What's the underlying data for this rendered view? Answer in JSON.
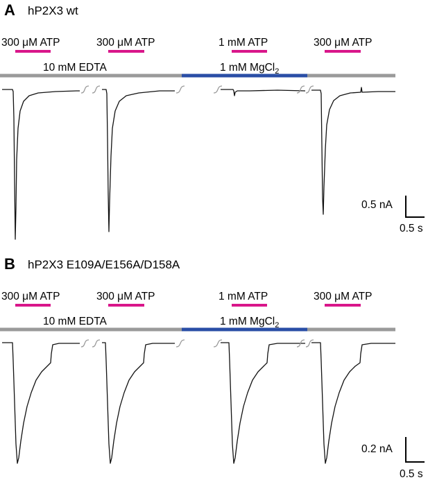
{
  "colors": {
    "atp_bar": "#d9168a",
    "edta_bar": "#9a9a9a",
    "mg_bar": "#2a4ea6",
    "trace": "#111111"
  },
  "panels": [
    {
      "letter": "A",
      "title": "hP2X3 wt",
      "atp_labels": [
        "300 μM ATP",
        "300 μM ATP",
        "1 mM ATP",
        "300 μM ATP"
      ],
      "edta_label": "10 mM EDTA",
      "mg_label_main": "1 mM MgCl",
      "mg_label_sub": "2",
      "scale_y_label": "0.5 nA",
      "scale_x_label": "0.5 s"
    },
    {
      "letter": "B",
      "title": "hP2X3 E109A/E156A/D158A",
      "atp_labels": [
        "300 μM ATP",
        "300 μM ATP",
        "1 mM ATP",
        "300 μM ATP"
      ],
      "edta_label": "10 mM EDTA",
      "mg_label_main": "1 mM MgCl",
      "mg_label_sub": "2",
      "scale_y_label": "0.2 nA",
      "scale_x_label": "0.5 s"
    }
  ]
}
